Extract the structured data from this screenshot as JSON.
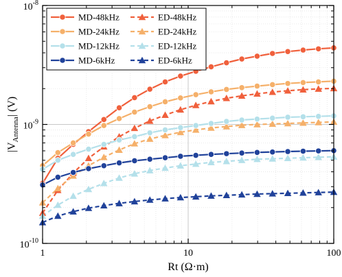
{
  "chart_data": {
    "type": "line",
    "title": "",
    "xlabel": "Rt (Ω·m)",
    "ylabel_prefix": "|V",
    "ylabel_sub": "Antenna",
    "ylabel_suffix": "| (V)",
    "xscale": "log",
    "yscale": "log",
    "xlim": [
      1,
      100
    ],
    "ylim": [
      1e-10,
      1e-08
    ],
    "grid": true,
    "legend_position": "top-left",
    "x_ticks": [
      {
        "value": 1,
        "label": "1"
      },
      {
        "value": 10,
        "label": "10"
      },
      {
        "value": 100,
        "label": "100"
      }
    ],
    "y_ticks": [
      {
        "value": 1e-10,
        "base": "10",
        "exp": "-10"
      },
      {
        "value": 1e-09,
        "base": "10",
        "exp": "-9"
      },
      {
        "value": 1e-08,
        "base": "10",
        "exp": "-8"
      }
    ],
    "x": [
      1.0,
      1.274,
      1.624,
      2.069,
      2.637,
      3.36,
      4.281,
      5.456,
      6.952,
      8.859,
      11.29,
      14.38,
      18.33,
      23.36,
      29.76,
      37.93,
      48.33,
      61.58,
      78.48,
      100.0
    ],
    "series": [
      {
        "name": "MD-48kHz",
        "color": "#f0603c",
        "dash": "solid",
        "marker": "circle",
        "values": [
          3.2e-10,
          5.2e-10,
          6.8e-10,
          8.7e-10,
          1.1e-09,
          1.38e-09,
          1.68e-09,
          1.98e-09,
          2.28e-09,
          2.55e-09,
          2.8e-09,
          3.05e-09,
          3.3e-09,
          3.55e-09,
          3.75e-09,
          3.95e-09,
          4.1e-09,
          4.22e-09,
          4.32e-09,
          4.4e-09
        ]
      },
      {
        "name": "ED-48kHz",
        "color": "#f0603c",
        "dash": "dashed",
        "marker": "triangle",
        "values": [
          1.8e-10,
          2.8e-10,
          3.9e-10,
          5.2e-10,
          6.5e-10,
          7.9e-10,
          9.3e-10,
          1.07e-09,
          1.2e-09,
          1.33e-09,
          1.45e-09,
          1.56e-09,
          1.66e-09,
          1.74e-09,
          1.81e-09,
          1.87e-09,
          1.92e-09,
          1.96e-09,
          1.99e-09,
          2.01e-09
        ]
      },
      {
        "name": "MD-24kHz",
        "color": "#f5b06a",
        "dash": "solid",
        "marker": "circle",
        "values": [
          4.5e-10,
          5.8e-10,
          7e-10,
          8.3e-10,
          9.8e-10,
          1.12e-09,
          1.27e-09,
          1.41e-09,
          1.55e-09,
          1.67e-09,
          1.78e-09,
          1.88e-09,
          1.97e-09,
          2.04e-09,
          2.1e-09,
          2.16e-09,
          2.21e-09,
          2.25e-09,
          2.28e-09,
          2.31e-09
        ]
      },
      {
        "name": "ED-24kHz",
        "color": "#f5b06a",
        "dash": "dashed",
        "marker": "triangle",
        "values": [
          2.2e-10,
          2.9e-10,
          3.7e-10,
          4.5e-10,
          5.3e-10,
          6.1e-10,
          6.9e-10,
          7.55e-10,
          8.1e-10,
          8.6e-10,
          9e-10,
          9.35e-10,
          9.6e-10,
          9.85e-10,
          1e-09,
          1.01e-09,
          1.02e-09,
          1.03e-09,
          1.04e-09,
          1.05e-09
        ]
      },
      {
        "name": "MD-12kHz",
        "color": "#b4e0ea",
        "dash": "solid",
        "marker": "circle",
        "values": [
          4.2e-10,
          5e-10,
          5.6e-10,
          6.2e-10,
          6.8e-10,
          7.4e-10,
          7.9e-10,
          8.5e-10,
          9e-10,
          9.4e-10,
          9.8e-10,
          1.02e-09,
          1.06e-09,
          1.09e-09,
          1.11e-09,
          1.13e-09,
          1.15e-09,
          1.16e-09,
          1.17e-09,
          1.18e-09
        ]
      },
      {
        "name": "ED-12kHz",
        "color": "#b4e0ea",
        "dash": "dashed",
        "marker": "triangle",
        "values": [
          1.7e-10,
          2.1e-10,
          2.5e-10,
          2.85e-10,
          3.2e-10,
          3.55e-10,
          3.85e-10,
          4.1e-10,
          4.3e-10,
          4.5e-10,
          4.65e-10,
          4.8e-10,
          4.9e-10,
          5e-10,
          5.1e-10,
          5.15e-10,
          5.2e-10,
          5.25e-10,
          5.3e-10,
          5.35e-10
        ]
      },
      {
        "name": "MD-6kHz",
        "color": "#20429a",
        "dash": "solid",
        "marker": "circle",
        "values": [
          3.1e-10,
          3.6e-10,
          3.95e-10,
          4.25e-10,
          4.5e-10,
          4.75e-10,
          4.95e-10,
          5.1e-10,
          5.25e-10,
          5.4e-10,
          5.5e-10,
          5.6e-10,
          5.68e-10,
          5.75e-10,
          5.82e-10,
          5.87e-10,
          5.92e-10,
          5.96e-10,
          5.99e-10,
          6.02e-10
        ]
      },
      {
        "name": "ED-6kHz",
        "color": "#20429a",
        "dash": "dashed",
        "marker": "triangle",
        "values": [
          1.5e-10,
          1.7e-10,
          1.85e-10,
          1.98e-10,
          2.08e-10,
          2.17e-10,
          2.25e-10,
          2.32e-10,
          2.38e-10,
          2.43e-10,
          2.47e-10,
          2.51e-10,
          2.54e-10,
          2.57e-10,
          2.6e-10,
          2.62e-10,
          2.64e-10,
          2.66e-10,
          2.68e-10,
          2.7e-10
        ]
      }
    ],
    "legend_layout": [
      [
        "MD-48kHz",
        "ED-48kHz"
      ],
      [
        "MD-24kHz",
        "ED-24kHz"
      ],
      [
        "MD-12kHz",
        "ED-12kHz"
      ],
      [
        "MD-6kHz",
        "ED-6kHz"
      ]
    ]
  }
}
